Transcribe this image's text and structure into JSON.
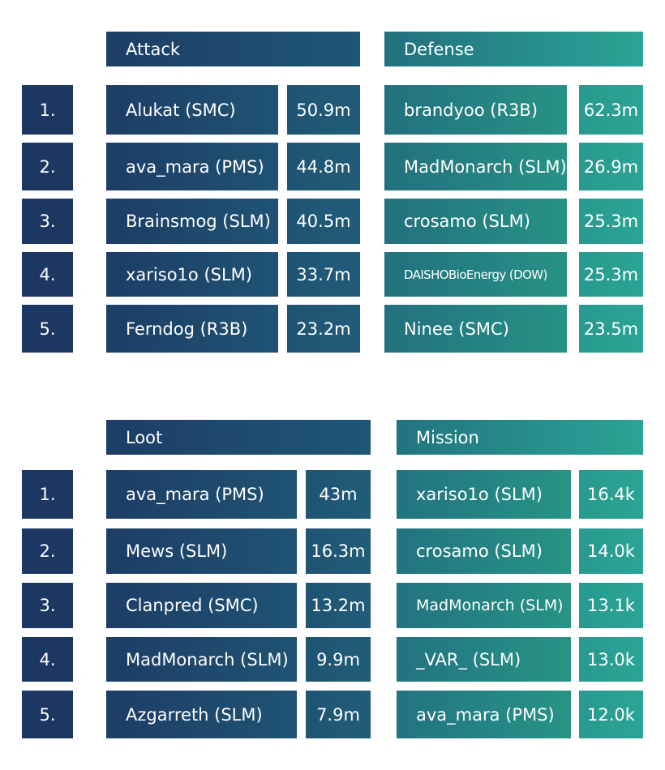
{
  "ranks": [
    "1.",
    "2.",
    "3.",
    "4.",
    "5."
  ],
  "attack": {
    "title": "Attack",
    "entries": [
      {
        "name": "Alukat (SMC)",
        "value": "50.9m"
      },
      {
        "name": "ava_mara (PMS)",
        "value": "44.8m"
      },
      {
        "name": "Brainsmog (SLM)",
        "value": "40.5m"
      },
      {
        "name": "xariso1o (SLM)",
        "value": "33.7m"
      },
      {
        "name": "Ferndog (R3B)",
        "value": "23.2m"
      }
    ]
  },
  "defense": {
    "title": "Defense",
    "entries": [
      {
        "name": "brandyoo (R3B)",
        "value": "62.3m"
      },
      {
        "name": "MadMonarch (SLM)",
        "value": "26.9m"
      },
      {
        "name": "crosamo (SLM)",
        "value": "25.3m"
      },
      {
        "name": "DAISHOBioEnergy (DOW)",
        "value": "25.3m"
      },
      {
        "name": "Ninee (SMC)",
        "value": "23.5m"
      }
    ]
  },
  "loot": {
    "title": "Loot",
    "entries": [
      {
        "name": "ava_mara (PMS)",
        "value": "43m"
      },
      {
        "name": "Mews (SLM)",
        "value": "16.3m"
      },
      {
        "name": "Clanpred (SMC)",
        "value": "13.2m"
      },
      {
        "name": "MadMonarch (SLM)",
        "value": "9.9m"
      },
      {
        "name": "Azgarreth (SLM)",
        "value": "7.9m"
      }
    ]
  },
  "mission": {
    "title": "Mission",
    "entries": [
      {
        "name": "xariso1o (SLM)",
        "value": "16.4k"
      },
      {
        "name": "crosamo (SLM)",
        "value": "14.0k"
      },
      {
        "name": "MadMonarch (SLM)",
        "value": "13.1k"
      },
      {
        "name": "_VAR_ (SLM)",
        "value": "13.0k"
      },
      {
        "name": "ava_mara (PMS)",
        "value": "12.0k"
      }
    ]
  },
  "colors": {
    "rank_bg": "#1b3762",
    "gradient_start": "#1d3d66",
    "gradient_end": "#2ba495"
  }
}
